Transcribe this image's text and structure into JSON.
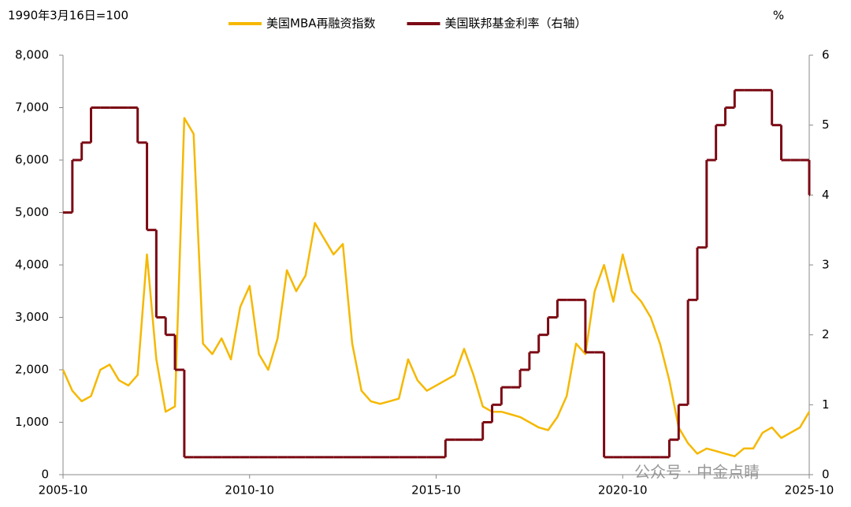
{
  "chart_data": {
    "type": "line",
    "y_unit_label": "1990年3月16日=100",
    "y2_unit_label": "%",
    "watermark": "公众号 · 中金点睛",
    "x": [
      "2005-10",
      "2006-01",
      "2006-04",
      "2006-07",
      "2006-10",
      "2007-01",
      "2007-04",
      "2007-07",
      "2007-10",
      "2008-01",
      "2008-04",
      "2008-07",
      "2008-10",
      "2009-01",
      "2009-04",
      "2009-07",
      "2009-10",
      "2010-01",
      "2010-04",
      "2010-07",
      "2010-10",
      "2011-01",
      "2011-04",
      "2011-07",
      "2011-10",
      "2012-01",
      "2012-04",
      "2012-07",
      "2012-10",
      "2013-01",
      "2013-04",
      "2013-07",
      "2013-10",
      "2014-01",
      "2014-04",
      "2014-07",
      "2014-10",
      "2015-01",
      "2015-04",
      "2015-07",
      "2015-10",
      "2016-01",
      "2016-04",
      "2016-07",
      "2016-10",
      "2017-01",
      "2017-04",
      "2017-07",
      "2017-10",
      "2018-01",
      "2018-04",
      "2018-07",
      "2018-10",
      "2019-01",
      "2019-04",
      "2019-07",
      "2019-10",
      "2020-01",
      "2020-04",
      "2020-07",
      "2020-10",
      "2021-01",
      "2021-04",
      "2021-07",
      "2021-10",
      "2022-01",
      "2022-04",
      "2022-07",
      "2022-10",
      "2023-01",
      "2023-04",
      "2023-07",
      "2023-10",
      "2024-01",
      "2024-04",
      "2024-07",
      "2024-10",
      "2025-01",
      "2025-04",
      "2025-07",
      "2025-10"
    ],
    "xticks": [
      "2005-10",
      "2010-10",
      "2015-10",
      "2020-10",
      "2025-10"
    ],
    "series": [
      {
        "name": "美国MBA再融资指数",
        "color": "#f5b800",
        "style": "line",
        "values": [
          2000,
          1600,
          1400,
          1500,
          2000,
          2100,
          1800,
          1700,
          1900,
          4200,
          2200,
          1200,
          1300,
          6800,
          6500,
          2500,
          2300,
          2600,
          2200,
          3200,
          3600,
          2300,
          2000,
          2600,
          3900,
          3500,
          3800,
          4800,
          4500,
          4200,
          4400,
          2500,
          1600,
          1400,
          1350,
          1400,
          1450,
          2200,
          1800,
          1600,
          1700,
          1800,
          1900,
          2400,
          1900,
          1300,
          1200,
          1200,
          1150,
          1100,
          1000,
          900,
          850,
          1100,
          1500,
          2500,
          2300,
          3500,
          4000,
          3300,
          4200,
          3500,
          3300,
          3000,
          2500,
          1800,
          900,
          600,
          400,
          500,
          450,
          400,
          350,
          500,
          500,
          800,
          900,
          700,
          800,
          900,
          1200
        ]
      },
      {
        "name": "美国联邦基金利率（右轴）",
        "color": "#7b0a14",
        "style": "step",
        "axis": "y2",
        "values": [
          3.75,
          4.5,
          4.75,
          5.25,
          5.25,
          5.25,
          5.25,
          5.25,
          4.75,
          3.5,
          2.25,
          2.0,
          1.5,
          0.25,
          0.25,
          0.25,
          0.25,
          0.25,
          0.25,
          0.25,
          0.25,
          0.25,
          0.25,
          0.25,
          0.25,
          0.25,
          0.25,
          0.25,
          0.25,
          0.25,
          0.25,
          0.25,
          0.25,
          0.25,
          0.25,
          0.25,
          0.25,
          0.25,
          0.25,
          0.25,
          0.25,
          0.5,
          0.5,
          0.5,
          0.5,
          0.75,
          1.0,
          1.25,
          1.25,
          1.5,
          1.75,
          2.0,
          2.25,
          2.5,
          2.5,
          2.5,
          1.75,
          1.75,
          0.25,
          0.25,
          0.25,
          0.25,
          0.25,
          0.25,
          0.25,
          0.5,
          1.0,
          2.5,
          3.25,
          4.5,
          5.0,
          5.25,
          5.5,
          5.5,
          5.5,
          5.5,
          5.0,
          4.5,
          4.5,
          4.5,
          4.0
        ]
      }
    ],
    "ylim": [
      0,
      8000
    ],
    "yticks": [
      0,
      {
        "value": 1000,
        "label": "1,000"
      },
      {
        "value": 2000,
        "label": "2,000"
      },
      {
        "value": 3000,
        "label": "3,000"
      },
      {
        "value": 4000,
        "label": "4,000"
      },
      {
        "value": 5000,
        "label": "5,000"
      },
      {
        "value": 6000,
        "label": "6,000"
      },
      {
        "value": 7000,
        "label": "7,000"
      },
      {
        "value": 8000,
        "label": "8,000"
      }
    ],
    "y2lim": [
      0,
      6
    ],
    "y2ticks": [
      0,
      1,
      2,
      3,
      4,
      5,
      6
    ],
    "legend": "top"
  }
}
